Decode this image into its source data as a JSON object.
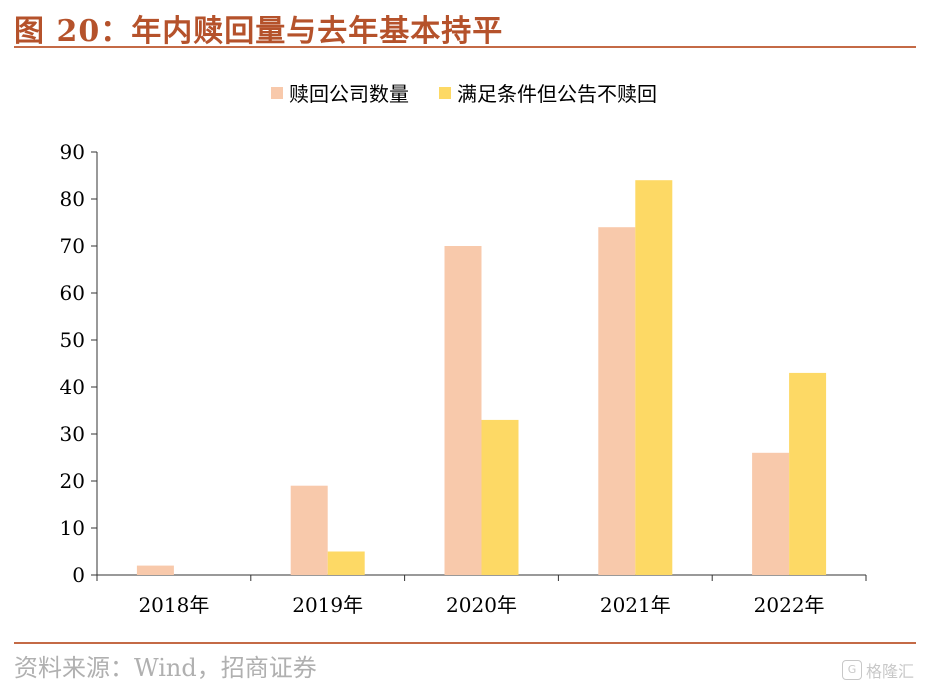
{
  "figure_title": "图 20：年内赎回量与去年基本持平",
  "source": "资料来源：Wind，招商证券",
  "watermark": "格隆汇",
  "colors": {
    "accent": "#b5522b",
    "series_redeemed": "#f8c9ab",
    "series_not_redeemed": "#fdd965"
  },
  "chart_data": {
    "type": "bar",
    "title": "",
    "xlabel": "",
    "ylabel": "",
    "categories": [
      "2018年",
      "2019年",
      "2020年",
      "2021年",
      "2022年"
    ],
    "series": [
      {
        "name": "赎回公司数量",
        "values": [
          2,
          19,
          70,
          74,
          26
        ]
      },
      {
        "name": "满足条件但公告不赎回",
        "values": [
          0,
          5,
          33,
          84,
          43
        ]
      }
    ],
    "ylim": [
      0,
      90
    ],
    "yticks": [
      0,
      10,
      20,
      30,
      40,
      50,
      60,
      70,
      80,
      90
    ],
    "legend_position": "top-center",
    "grid": false
  }
}
